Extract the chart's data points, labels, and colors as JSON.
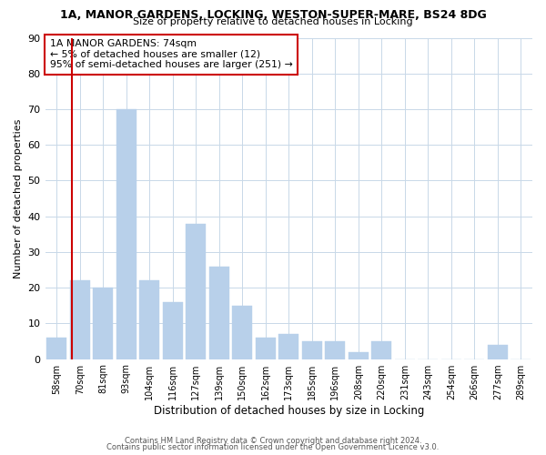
{
  "title": "1A, MANOR GARDENS, LOCKING, WESTON-SUPER-MARE, BS24 8DG",
  "subtitle": "Size of property relative to detached houses in Locking",
  "xlabel": "Distribution of detached houses by size in Locking",
  "ylabel": "Number of detached properties",
  "bar_color": "#b8d0ea",
  "bar_edge_color": "#b8d0ea",
  "categories": [
    "58sqm",
    "70sqm",
    "81sqm",
    "93sqm",
    "104sqm",
    "116sqm",
    "127sqm",
    "139sqm",
    "150sqm",
    "162sqm",
    "173sqm",
    "185sqm",
    "196sqm",
    "208sqm",
    "220sqm",
    "231sqm",
    "243sqm",
    "254sqm",
    "266sqm",
    "277sqm",
    "289sqm"
  ],
  "values": [
    6,
    22,
    20,
    70,
    22,
    16,
    38,
    26,
    15,
    6,
    7,
    5,
    5,
    2,
    5,
    0,
    0,
    0,
    0,
    4,
    0
  ],
  "ylim": [
    0,
    90
  ],
  "yticks": [
    0,
    10,
    20,
    30,
    40,
    50,
    60,
    70,
    80,
    90
  ],
  "vline_color": "#cc0000",
  "vline_position": 0.65,
  "annotation_text": "1A MANOR GARDENS: 74sqm\n← 5% of detached houses are smaller (12)\n95% of semi-detached houses are larger (251) →",
  "annotation_box_edge": "#cc0000",
  "footer1": "Contains HM Land Registry data © Crown copyright and database right 2024.",
  "footer2": "Contains public sector information licensed under the Open Government Licence v3.0.",
  "background_color": "#ffffff",
  "grid_color": "#c8d8e8"
}
